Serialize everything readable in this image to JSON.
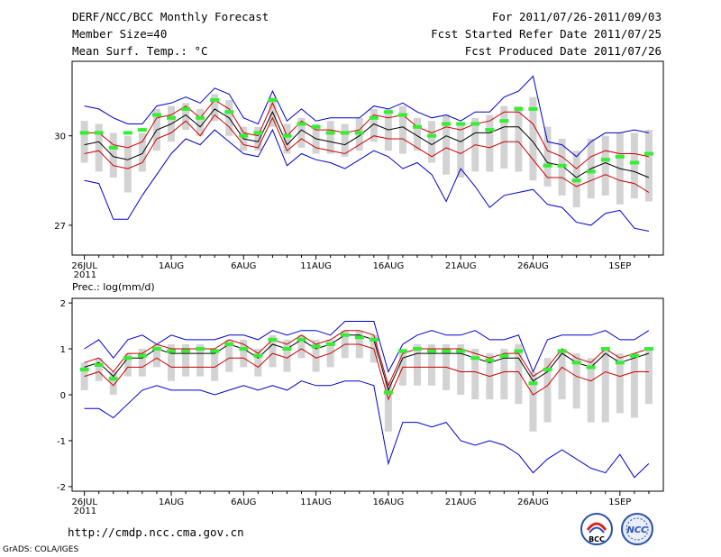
{
  "header": {
    "line1_left": "DERF/NCC/BCC Monthly Forecast",
    "line2_left": "Member Size=40",
    "line3_left": "Mean Surf. Temp.: °C",
    "line1_right": "For 2011/07/26-2011/09/03",
    "line2_right": "Fcst Started Refer Date 2011/07/25",
    "line3_right": "Fcst Produced Date 2011/07/26"
  },
  "precip_label": "Prec.: log(mm/d)",
  "footer": {
    "url": "http://cmdp.ncc.cma.gov.cn",
    "grads": "GrADS: COLA/IGES",
    "logo_bcc": "BCC",
    "logo_ncc": "NCC"
  },
  "colors": {
    "ensemble_mean": "#000000",
    "spread": "#cc0000",
    "extremes": "#0000cc",
    "box": "#d3d3d3",
    "median": "#33ee33"
  },
  "chart_data": [
    {
      "type": "line",
      "title": "Mean Surf. Temp.",
      "ylabel": "°C",
      "x": [
        0,
        1,
        2,
        3,
        4,
        5,
        6,
        7,
        8,
        9,
        10,
        11,
        12,
        13,
        14,
        15,
        16,
        17,
        18,
        19,
        20,
        21,
        22,
        23,
        24,
        25,
        26,
        27,
        28,
        29,
        30,
        31,
        32,
        33,
        34,
        35,
        36,
        37,
        38,
        39
      ],
      "xtick_positions": [
        0,
        6,
        11,
        16,
        21,
        26,
        31,
        37
      ],
      "xtick_labels": [
        "26JUL",
        "1AUG",
        "6AUG",
        "11AUG",
        "16AUG",
        "21AUG",
        "26AUG",
        "1SEP"
      ],
      "xtick_year": "2011",
      "ylim": [
        26.0,
        32.5
      ],
      "yticks": [
        27,
        30
      ],
      "series": [
        {
          "name": "max",
          "values": [
            31.0,
            30.9,
            30.6,
            30.4,
            30.4,
            31.0,
            31.1,
            31.3,
            31.1,
            31.6,
            31.4,
            30.6,
            30.4,
            31.5,
            30.5,
            30.9,
            30.5,
            30.6,
            30.6,
            30.6,
            31.0,
            30.9,
            31.1,
            30.8,
            30.6,
            30.7,
            30.5,
            30.8,
            30.8,
            31.3,
            31.5,
            32.0,
            29.8,
            29.7,
            29.3,
            29.8,
            30.1,
            30.1,
            30.2,
            30.1
          ]
        },
        {
          "name": "upper",
          "values": [
            30.1,
            30.1,
            29.7,
            29.6,
            29.8,
            30.6,
            30.7,
            31.0,
            30.6,
            31.2,
            30.9,
            30.1,
            30.0,
            31.1,
            30.0,
            30.5,
            30.2,
            30.2,
            30.1,
            30.2,
            30.7,
            30.6,
            30.7,
            30.3,
            30.1,
            30.3,
            30.2,
            30.4,
            30.5,
            30.8,
            30.8,
            30.4,
            29.5,
            29.3,
            28.9,
            29.3,
            29.5,
            29.4,
            29.4,
            29.3
          ]
        },
        {
          "name": "mean",
          "values": [
            29.7,
            29.8,
            29.3,
            29.2,
            29.4,
            30.2,
            30.4,
            30.7,
            30.3,
            30.9,
            30.6,
            29.9,
            29.8,
            30.8,
            29.7,
            30.2,
            29.9,
            29.8,
            29.7,
            30.0,
            30.4,
            30.2,
            30.3,
            30.0,
            29.7,
            30.0,
            29.8,
            30.1,
            30.1,
            30.3,
            30.3,
            29.8,
            29.1,
            29.0,
            28.6,
            28.9,
            29.1,
            28.9,
            28.8,
            28.6
          ]
        },
        {
          "name": "lower",
          "values": [
            29.4,
            29.5,
            29.0,
            28.9,
            29.1,
            29.9,
            30.1,
            30.5,
            30.0,
            30.7,
            30.3,
            29.7,
            29.6,
            30.6,
            29.5,
            29.9,
            29.6,
            29.5,
            29.4,
            29.7,
            30.0,
            29.9,
            29.9,
            29.6,
            29.3,
            29.6,
            29.4,
            29.7,
            29.6,
            29.8,
            29.8,
            29.2,
            28.6,
            28.6,
            28.3,
            28.5,
            28.7,
            28.5,
            28.4,
            28.1
          ]
        },
        {
          "name": "min",
          "values": [
            28.5,
            28.4,
            27.2,
            27.2,
            28.0,
            28.7,
            29.4,
            29.9,
            29.7,
            30.2,
            29.8,
            29.4,
            29.3,
            30.2,
            29.0,
            29.4,
            29.2,
            29.1,
            28.9,
            29.2,
            29.5,
            29.3,
            28.9,
            29.1,
            28.7,
            27.8,
            28.9,
            28.3,
            27.6,
            28.0,
            28.1,
            28.2,
            27.7,
            27.6,
            27.1,
            27.0,
            27.4,
            27.5,
            26.9,
            26.8
          ]
        }
      ],
      "boxes": {
        "top": [
          30.5,
          30.4,
          30.1,
          30.0,
          30.1,
          30.9,
          31.0,
          31.1,
          30.9,
          31.4,
          31.2,
          30.3,
          30.3,
          31.3,
          30.4,
          30.6,
          30.4,
          30.5,
          30.4,
          30.6,
          30.9,
          30.9,
          31.0,
          30.6,
          30.5,
          30.7,
          30.4,
          30.6,
          30.7,
          31.0,
          31.0,
          31.3,
          30.3,
          29.9,
          29.5,
          29.9,
          30.0,
          30.1,
          30.1,
          30.2
        ],
        "bottom": [
          29.1,
          28.8,
          28.6,
          28.1,
          28.8,
          29.5,
          29.8,
          30.2,
          30.0,
          30.5,
          30.0,
          29.5,
          29.5,
          30.3,
          29.4,
          29.6,
          29.4,
          29.4,
          29.3,
          29.5,
          29.8,
          29.5,
          29.4,
          29.5,
          29.1,
          28.7,
          28.6,
          28.8,
          28.8,
          28.9,
          28.8,
          28.5,
          28.3,
          28.0,
          27.6,
          27.9,
          28.0,
          27.7,
          27.9,
          27.8
        ],
        "median": [
          30.1,
          30.1,
          29.6,
          30.1,
          30.2,
          30.7,
          30.6,
          30.9,
          30.6,
          31.2,
          30.8,
          30.0,
          30.1,
          31.2,
          30.0,
          30.4,
          30.3,
          30.1,
          30.1,
          30.1,
          30.6,
          30.8,
          30.7,
          30.3,
          30.0,
          30.4,
          30.4,
          30.4,
          30.2,
          30.5,
          30.9,
          30.9,
          29.0,
          29.0,
          28.5,
          28.8,
          29.2,
          29.3,
          29.1,
          29.4
        ]
      }
    },
    {
      "type": "line",
      "title": "Prec.: log(mm/d)",
      "ylabel": "log(mm/d)",
      "x": [
        0,
        1,
        2,
        3,
        4,
        5,
        6,
        7,
        8,
        9,
        10,
        11,
        12,
        13,
        14,
        15,
        16,
        17,
        18,
        19,
        20,
        21,
        22,
        23,
        24,
        25,
        26,
        27,
        28,
        29,
        30,
        31,
        32,
        33,
        34,
        35,
        36,
        37,
        38,
        39
      ],
      "xtick_positions": [
        0,
        6,
        11,
        16,
        21,
        26,
        31,
        37
      ],
      "xtick_labels": [
        "26JUL",
        "1AUG",
        "6AUG",
        "11AUG",
        "16AUG",
        "21AUG",
        "26AUG",
        "1SEP"
      ],
      "xtick_year": "2011",
      "ylim": [
        -2.1,
        2.1
      ],
      "yticks": [
        -2,
        -1,
        0,
        1,
        2
      ],
      "series": [
        {
          "name": "max",
          "values": [
            1.0,
            1.2,
            0.8,
            1.2,
            1.3,
            1.1,
            1.3,
            1.2,
            1.2,
            1.2,
            1.3,
            1.3,
            1.2,
            1.4,
            1.3,
            1.4,
            1.4,
            1.3,
            1.6,
            1.6,
            1.6,
            0.5,
            1.1,
            1.3,
            1.4,
            1.3,
            1.3,
            1.4,
            1.2,
            1.2,
            1.3,
            0.5,
            1.2,
            1.3,
            1.3,
            1.3,
            1.4,
            1.2,
            1.2,
            1.4
          ]
        },
        {
          "name": "upper",
          "values": [
            0.7,
            0.8,
            0.5,
            0.9,
            0.9,
            1.1,
            1.0,
            1.0,
            1.0,
            1.0,
            1.2,
            1.1,
            0.9,
            1.2,
            1.1,
            1.3,
            1.1,
            1.2,
            1.4,
            1.4,
            1.3,
            0.2,
            0.9,
            1.0,
            1.0,
            1.0,
            1.0,
            0.9,
            0.8,
            0.9,
            0.9,
            0.4,
            0.6,
            1.0,
            0.8,
            0.7,
            1.0,
            0.8,
            0.9,
            1.0
          ]
        },
        {
          "name": "mean",
          "values": [
            0.6,
            0.7,
            0.4,
            0.8,
            0.8,
            1.0,
            0.9,
            0.9,
            0.9,
            0.9,
            1.1,
            1.0,
            0.8,
            1.1,
            1.0,
            1.2,
            1.0,
            1.1,
            1.3,
            1.3,
            1.2,
            0.1,
            0.8,
            0.9,
            0.9,
            0.9,
            0.9,
            0.8,
            0.7,
            0.8,
            0.8,
            0.3,
            0.5,
            0.9,
            0.7,
            0.6,
            0.9,
            0.7,
            0.8,
            0.9
          ]
        },
        {
          "name": "lower",
          "values": [
            0.4,
            0.5,
            0.2,
            0.6,
            0.6,
            0.8,
            0.6,
            0.6,
            0.6,
            0.6,
            0.8,
            0.8,
            0.6,
            0.9,
            0.8,
            1.0,
            0.8,
            0.9,
            1.1,
            1.1,
            1.0,
            -0.1,
            0.6,
            0.6,
            0.6,
            0.6,
            0.5,
            0.5,
            0.4,
            0.5,
            0.5,
            0.0,
            0.2,
            0.6,
            0.4,
            0.3,
            0.5,
            0.4,
            0.5,
            0.5
          ]
        },
        {
          "name": "min",
          "values": [
            -0.3,
            -0.3,
            -0.5,
            -0.2,
            0.1,
            0.2,
            0.1,
            0.1,
            0.1,
            0.0,
            0.1,
            0.2,
            0.1,
            0.2,
            0.1,
            0.3,
            0.2,
            0.2,
            0.3,
            0.3,
            0.2,
            -1.5,
            -0.6,
            -0.6,
            -0.7,
            -0.6,
            -1.0,
            -1.1,
            -1.0,
            -1.1,
            -1.3,
            -1.7,
            -1.4,
            -1.2,
            -1.4,
            -1.6,
            -1.7,
            -1.3,
            -1.8,
            -1.5
          ]
        }
      ],
      "boxes": {
        "top": [
          0.7,
          0.8,
          0.5,
          0.9,
          1.0,
          1.1,
          1.1,
          1.1,
          1.1,
          1.0,
          1.2,
          1.2,
          1.0,
          1.3,
          1.2,
          1.3,
          1.2,
          1.2,
          1.4,
          1.4,
          1.3,
          0.3,
          1.0,
          1.1,
          1.1,
          1.1,
          1.1,
          1.0,
          0.9,
          1.0,
          1.1,
          0.5,
          0.8,
          1.0,
          0.9,
          0.8,
          1.0,
          0.9,
          0.9,
          1.0
        ],
        "bottom": [
          0.1,
          0.3,
          0.0,
          0.4,
          0.4,
          0.6,
          0.3,
          0.4,
          0.4,
          0.3,
          0.5,
          0.6,
          0.4,
          0.6,
          0.5,
          0.8,
          0.5,
          0.6,
          0.8,
          0.8,
          0.7,
          -0.8,
          0.2,
          0.2,
          0.2,
          0.1,
          0.0,
          -0.1,
          -0.1,
          -0.1,
          -0.2,
          -0.8,
          -0.6,
          -0.1,
          -0.3,
          -0.6,
          -0.6,
          -0.4,
          -0.5,
          -0.2
        ],
        "median": [
          0.55,
          0.65,
          0.35,
          0.8,
          0.85,
          1.0,
          0.95,
          0.95,
          1.0,
          0.95,
          1.1,
          1.0,
          0.85,
          1.2,
          1.0,
          1.2,
          1.05,
          1.1,
          1.3,
          1.25,
          1.2,
          0.05,
          0.95,
          1.0,
          0.95,
          0.95,
          0.95,
          0.8,
          0.75,
          0.85,
          0.95,
          0.25,
          0.55,
          0.95,
          0.7,
          0.6,
          1.0,
          0.7,
          0.85,
          1.0
        ]
      }
    }
  ]
}
